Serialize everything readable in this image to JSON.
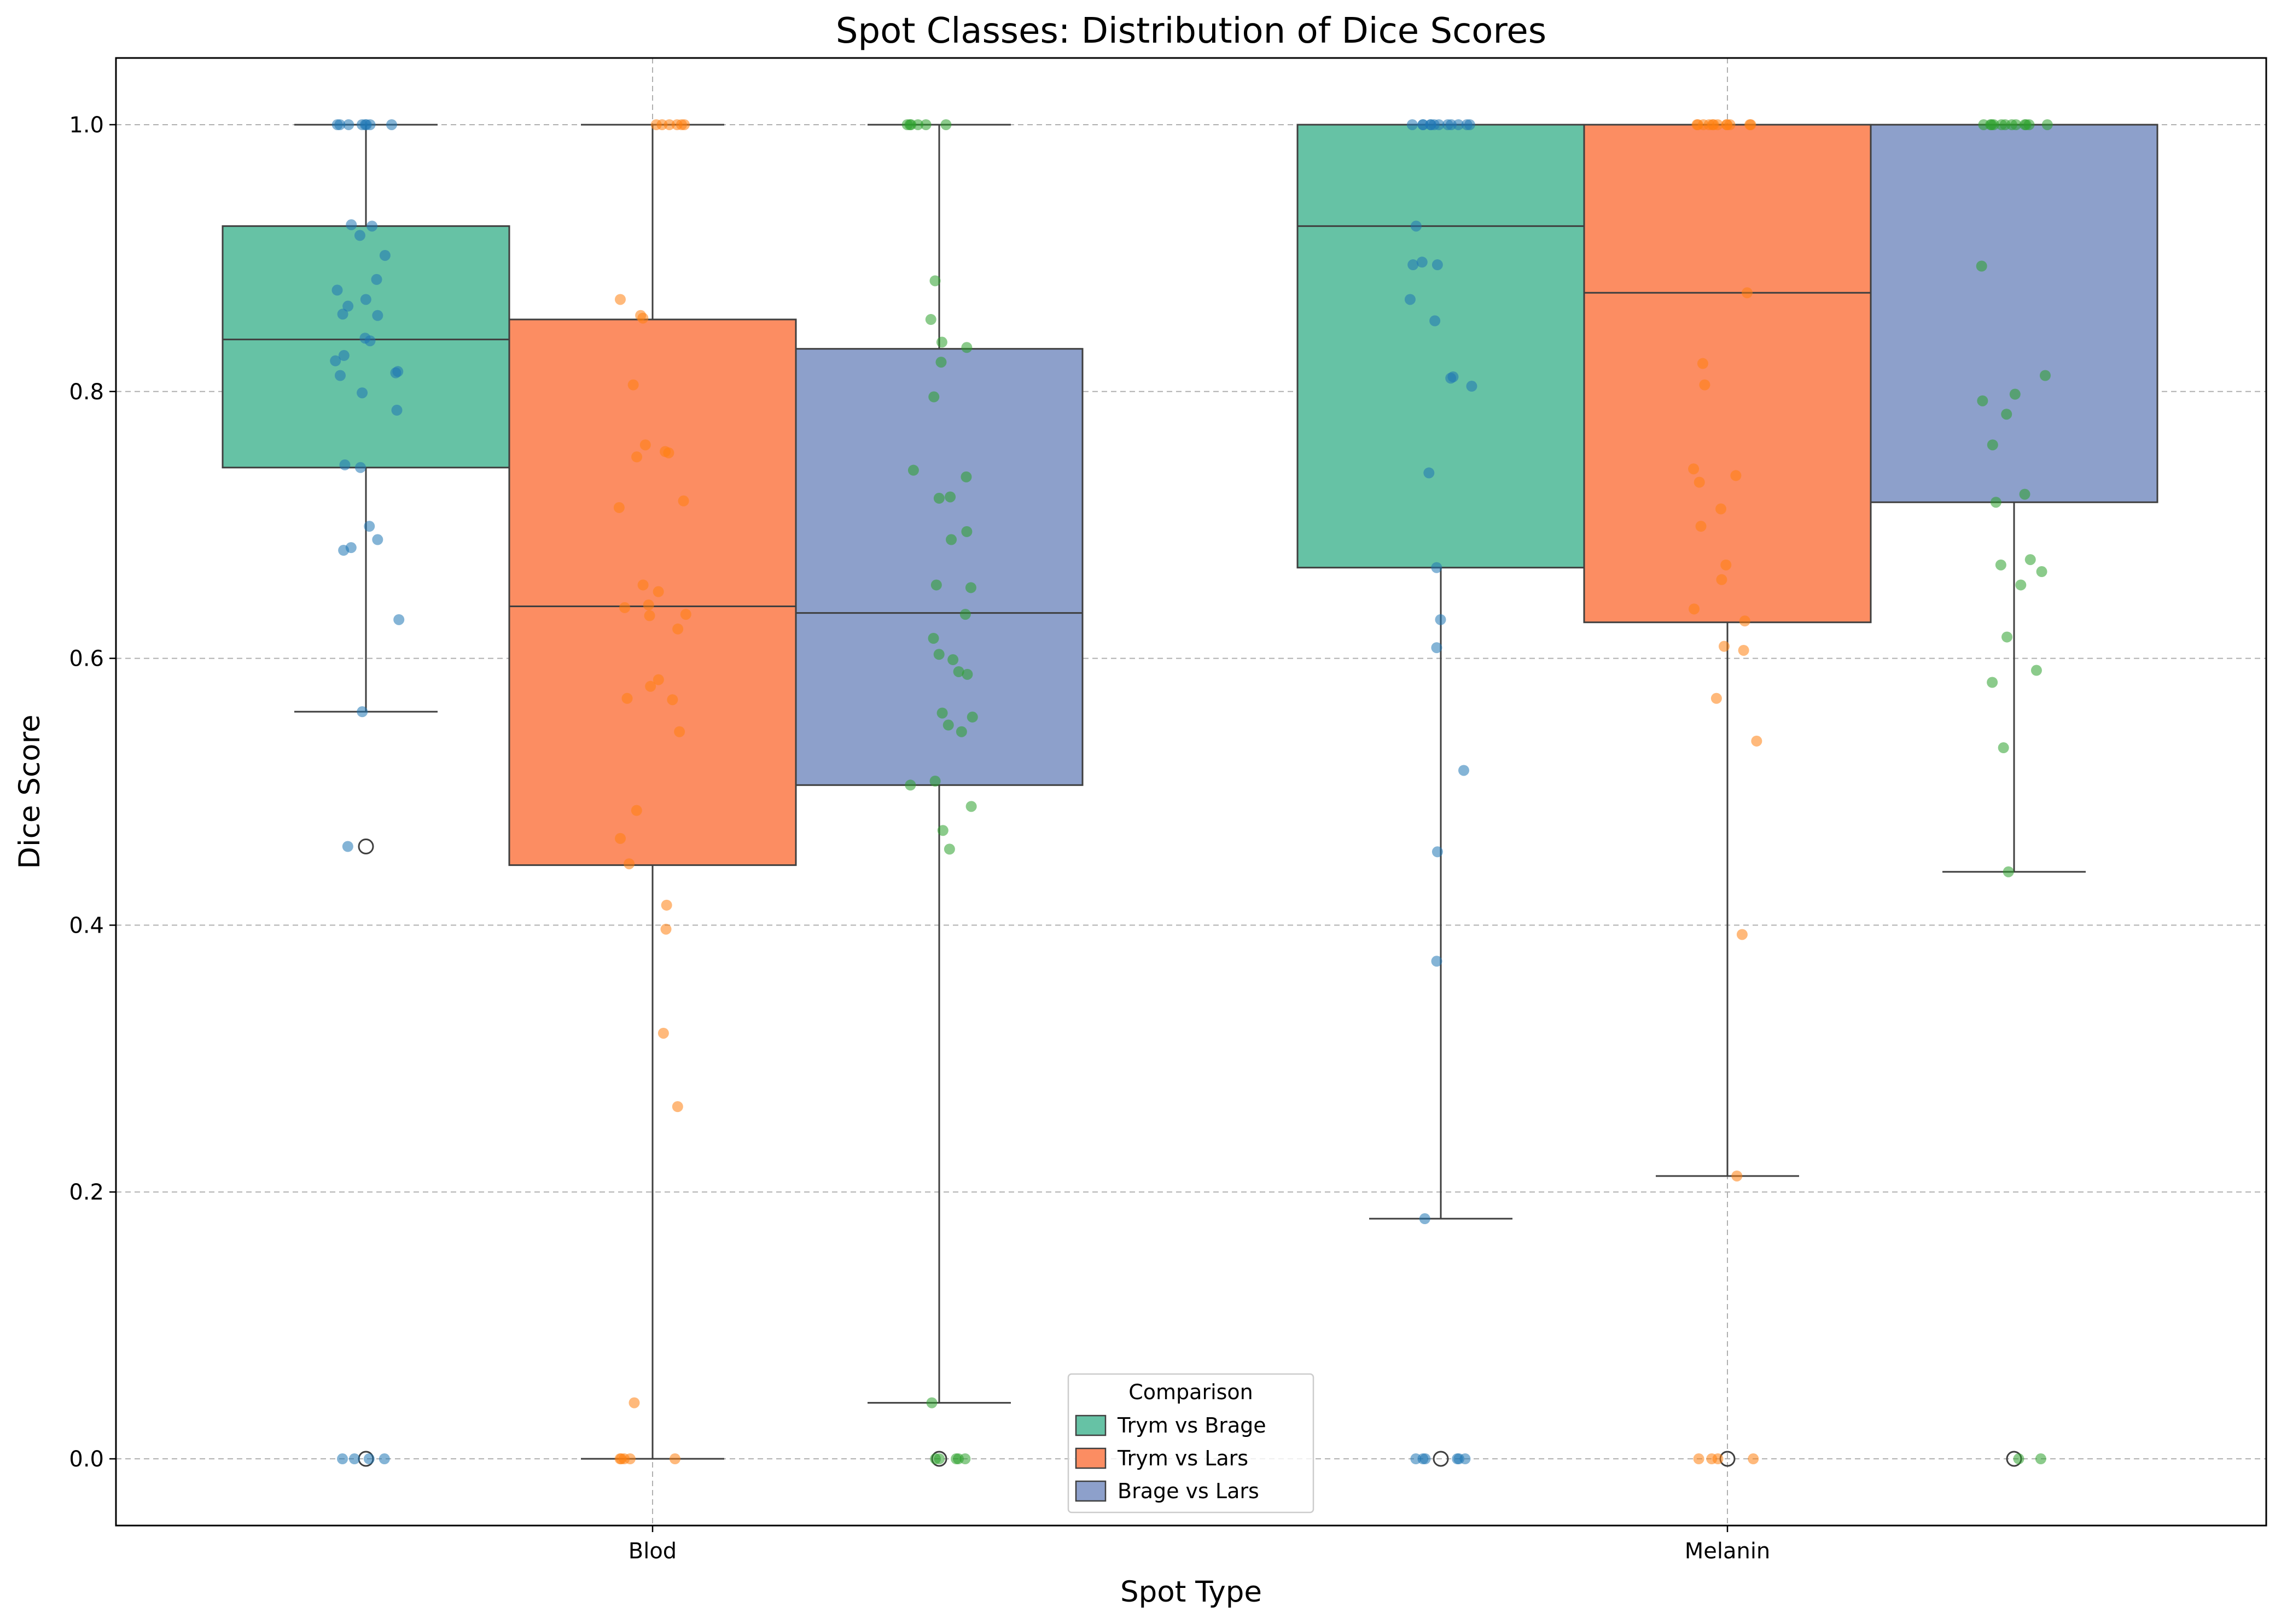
{
  "chart_data": {
    "type": "box",
    "title": "Spot Classes: Distribution of Dice Scores",
    "xlabel": "Spot Type",
    "ylabel": "Dice Score",
    "ylim": [
      -0.05,
      1.05
    ],
    "yticks": [
      0.0,
      0.2,
      0.4,
      0.6,
      0.8,
      1.0
    ],
    "ytick_labels": [
      "0.0",
      "0.2",
      "0.4",
      "0.6",
      "0.8",
      "1.0"
    ],
    "categories": [
      "Blod",
      "Melanin"
    ],
    "grid": true,
    "legend": {
      "title": "Comparison",
      "placement": "lower-center"
    },
    "series": [
      {
        "name": "Trym vs Brage",
        "box_color": "#66c2a5",
        "point_color": "#1f77b4",
        "stats": [
          {
            "category": "Blod",
            "q1": 0.743,
            "median": 0.839,
            "q3": 0.924,
            "whisker_low": 0.56,
            "whisker_high": 1.0,
            "outliers": [
              0.459,
              0.0
            ]
          },
          {
            "category": "Melanin",
            "q1": 0.668,
            "median": 0.924,
            "q3": 1.0,
            "whisker_low": 0.18,
            "whisker_high": 1.0,
            "outliers": [
              0.0
            ]
          }
        ],
        "points": [
          [
            1.0,
            1.0,
            1.0,
            1.0,
            1.0,
            1.0,
            1.0,
            1.0,
            0.924,
            0.917,
            0.925,
            0.902,
            0.884,
            0.876,
            0.869,
            0.864,
            0.857,
            0.858,
            0.838,
            0.84,
            0.827,
            0.823,
            0.814,
            0.815,
            0.812,
            0.799,
            0.786,
            0.745,
            0.743,
            0.699,
            0.689,
            0.683,
            0.681,
            0.629,
            0.56,
            0.459,
            0.0,
            0.0,
            0.0,
            0.0
          ],
          [
            1.0,
            1.0,
            1.0,
            1.0,
            1.0,
            1.0,
            1.0,
            1.0,
            1.0,
            1.0,
            1.0,
            1.0,
            0.924,
            0.897,
            0.895,
            0.895,
            0.869,
            0.853,
            0.811,
            0.81,
            0.804,
            0.739,
            0.668,
            0.629,
            0.608,
            0.516,
            0.455,
            0.373,
            0.18,
            0.0,
            0.0,
            0.0,
            0.0,
            0.0,
            0.0
          ]
        ]
      },
      {
        "name": "Trym vs Lars",
        "box_color": "#fc8d62",
        "point_color": "#ff7f0e",
        "stats": [
          {
            "category": "Blod",
            "q1": 0.445,
            "median": 0.639,
            "q3": 0.854,
            "whisker_low": 0.0,
            "whisker_high": 1.0,
            "outliers": []
          },
          {
            "category": "Melanin",
            "q1": 0.627,
            "median": 0.874,
            "q3": 1.0,
            "whisker_low": 0.212,
            "whisker_high": 1.0,
            "outliers": [
              0.0
            ]
          }
        ],
        "points": [
          [
            1.0,
            1.0,
            1.0,
            1.0,
            1.0,
            1.0,
            0.869,
            0.857,
            0.855,
            0.805,
            0.76,
            0.755,
            0.754,
            0.751,
            0.718,
            0.713,
            0.655,
            0.65,
            0.64,
            0.638,
            0.633,
            0.632,
            0.622,
            0.584,
            0.579,
            0.57,
            0.569,
            0.545,
            0.486,
            0.465,
            0.446,
            0.415,
            0.397,
            0.319,
            0.264,
            0.042,
            0.0,
            0.0,
            0.0,
            0.0,
            0.0
          ],
          [
            1.0,
            1.0,
            1.0,
            1.0,
            1.0,
            1.0,
            1.0,
            1.0,
            1.0,
            1.0,
            1.0,
            1.0,
            0.874,
            0.821,
            0.805,
            0.742,
            0.737,
            0.732,
            0.712,
            0.699,
            0.67,
            0.659,
            0.637,
            0.628,
            0.609,
            0.606,
            0.57,
            0.538,
            0.393,
            0.212,
            0.0,
            0.0,
            0.0,
            0.0
          ]
        ]
      },
      {
        "name": "Brage vs Lars",
        "box_color": "#8da0cb",
        "point_color": "#2ca02c",
        "stats": [
          {
            "category": "Blod",
            "q1": 0.505,
            "median": 0.634,
            "q3": 0.832,
            "whisker_low": 0.042,
            "whisker_high": 1.0,
            "outliers": [
              0.0
            ]
          },
          {
            "category": "Melanin",
            "q1": 0.717,
            "median": 1.0,
            "q3": 1.0,
            "whisker_low": 0.44,
            "whisker_high": 1.0,
            "outliers": [
              0.0
            ]
          }
        ],
        "points": [
          [
            1.0,
            1.0,
            1.0,
            1.0,
            1.0,
            1.0,
            0.883,
            0.854,
            0.837,
            0.833,
            0.822,
            0.796,
            0.741,
            0.736,
            0.721,
            0.72,
            0.695,
            0.689,
            0.655,
            0.653,
            0.633,
            0.615,
            0.603,
            0.599,
            0.59,
            0.588,
            0.559,
            0.556,
            0.55,
            0.545,
            0.508,
            0.505,
            0.489,
            0.471,
            0.457,
            0.042,
            0.0,
            0.0,
            0.0,
            0.0,
            0.0
          ],
          [
            1.0,
            1.0,
            1.0,
            1.0,
            1.0,
            1.0,
            1.0,
            1.0,
            1.0,
            1.0,
            1.0,
            1.0,
            0.894,
            0.812,
            0.798,
            0.793,
            0.783,
            0.76,
            0.723,
            0.717,
            0.674,
            0.67,
            0.665,
            0.655,
            0.616,
            0.591,
            0.582,
            0.533,
            0.44,
            0.0,
            0.0
          ]
        ]
      }
    ]
  }
}
